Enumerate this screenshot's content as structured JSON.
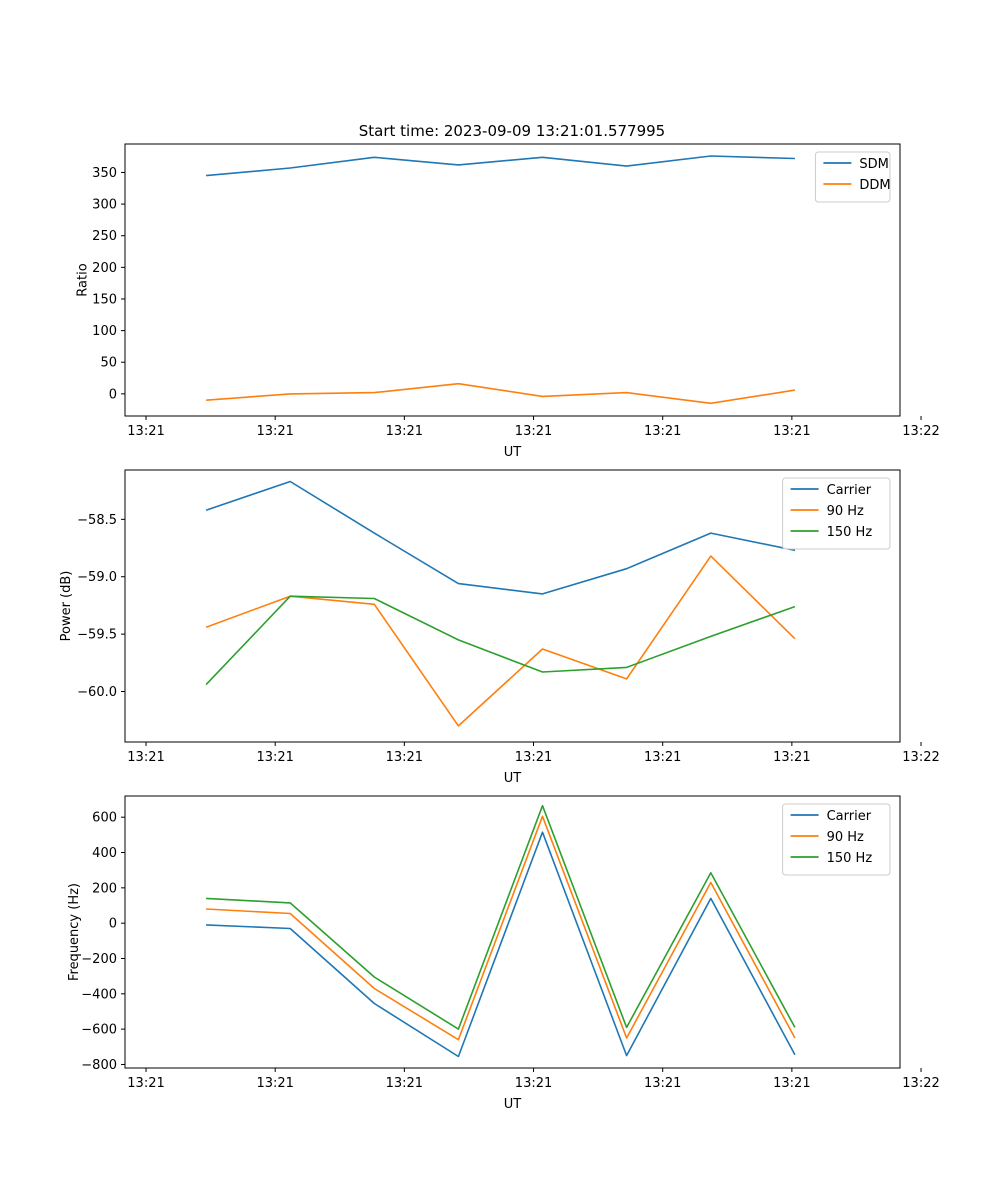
{
  "title": "Start time: 2023-09-09 13:21:01.577995",
  "colors": {
    "blue": "#1f77b4",
    "orange": "#ff7f0e",
    "green": "#2ca02c"
  },
  "chart_data": [
    {
      "type": "line",
      "xlabel": "UT",
      "ylabel": "Ratio",
      "xlim": [
        -0.4643,
        8.75
      ],
      "ylim": [
        -35,
        395
      ],
      "x": [
        0.5,
        1.5,
        2.5,
        3.5,
        4.5,
        5.5,
        6.5,
        7.5
      ],
      "xticks": [
        -0.2143,
        1.3214,
        2.8571,
        4.3929,
        5.9286,
        7.4643,
        9.0
      ],
      "xtick_labels": [
        "13:21",
        "13:21",
        "13:21",
        "13:21",
        "13:21",
        "13:21",
        "13:22"
      ],
      "yticks": [
        0,
        50,
        100,
        150,
        200,
        250,
        300,
        350
      ],
      "ytick_labels": [
        "0",
        "50",
        "100",
        "150",
        "200",
        "250",
        "300",
        "350"
      ],
      "legend": "top-right",
      "series": [
        {
          "name": "SDM",
          "color": "#1f77b4",
          "values": [
            345,
            357,
            374,
            362,
            374,
            360,
            376,
            372
          ]
        },
        {
          "name": "DDM",
          "color": "#ff7f0e",
          "values": [
            -10,
            0,
            2,
            16,
            -4,
            2,
            -15,
            6
          ]
        }
      ]
    },
    {
      "type": "line",
      "xlabel": "UT",
      "ylabel": "Power (dB)",
      "xlim": [
        -0.4643,
        8.75
      ],
      "ylim": [
        -60.44,
        -58.07
      ],
      "x": [
        0.5,
        1.5,
        2.5,
        3.5,
        4.5,
        5.5,
        6.5,
        7.5
      ],
      "xticks": [
        -0.2143,
        1.3214,
        2.8571,
        4.3929,
        5.9286,
        7.4643,
        9.0
      ],
      "xtick_labels": [
        "13:21",
        "13:21",
        "13:21",
        "13:21",
        "13:21",
        "13:21",
        "13:22"
      ],
      "yticks": [
        -60.0,
        -59.5,
        -59.0,
        -58.5
      ],
      "ytick_labels": [
        "−60.0",
        "−59.5",
        "−59.0",
        "−58.5"
      ],
      "legend": "top-right",
      "series": [
        {
          "name": "Carrier",
          "color": "#1f77b4",
          "values": [
            -58.42,
            -58.17,
            -58.62,
            -59.06,
            -59.15,
            -58.93,
            -58.62,
            -58.77
          ]
        },
        {
          "name": "90 Hz",
          "color": "#ff7f0e",
          "values": [
            -59.44,
            -59.17,
            -59.24,
            -60.3,
            -59.63,
            -59.89,
            -58.82,
            -59.54
          ]
        },
        {
          "name": "150 Hz",
          "color": "#2ca02c",
          "values": [
            -59.94,
            -59.17,
            -59.19,
            -59.55,
            -59.83,
            -59.79,
            -59.52,
            -59.26
          ]
        }
      ]
    },
    {
      "type": "line",
      "xlabel": "UT",
      "ylabel": "Frequency (Hz)",
      "xlim": [
        -0.4643,
        8.75
      ],
      "ylim": [
        -820,
        720
      ],
      "x": [
        0.5,
        1.5,
        2.5,
        3.5,
        4.5,
        5.5,
        6.5,
        7.5
      ],
      "xticks": [
        -0.2143,
        1.3214,
        2.8571,
        4.3929,
        5.9286,
        7.4643,
        9.0
      ],
      "xtick_labels": [
        "13:21",
        "13:21",
        "13:21",
        "13:21",
        "13:21",
        "13:21",
        "13:22"
      ],
      "yticks": [
        -800,
        -600,
        -400,
        -200,
        0,
        200,
        400,
        600
      ],
      "ytick_labels": [
        "−800",
        "−600",
        "−400",
        "−200",
        "0",
        "200",
        "400",
        "600"
      ],
      "legend": "top-right",
      "series": [
        {
          "name": "Carrier",
          "color": "#1f77b4",
          "values": [
            -10,
            -30,
            -455,
            -755,
            515,
            -750,
            140,
            -745
          ]
        },
        {
          "name": "90 Hz",
          "color": "#ff7f0e",
          "values": [
            80,
            55,
            -370,
            -660,
            605,
            -650,
            230,
            -650
          ]
        },
        {
          "name": "150 Hz",
          "color": "#2ca02c",
          "values": [
            140,
            115,
            -305,
            -600,
            665,
            -590,
            285,
            -590
          ]
        }
      ]
    }
  ]
}
